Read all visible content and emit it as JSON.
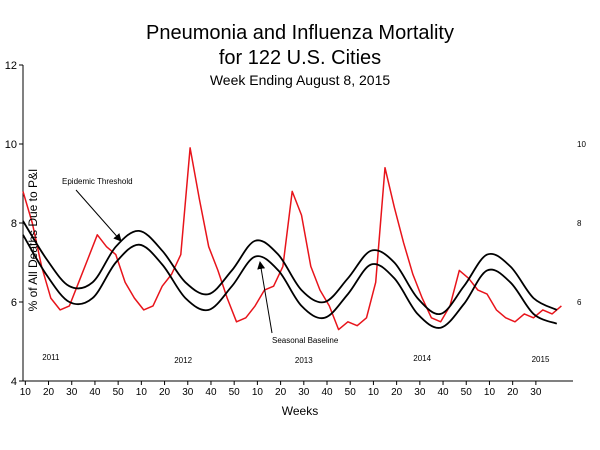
{
  "chart_data": {
    "type": "line",
    "title": "Pneumonia and Influenza Mortality",
    "title_line2": "for 122 U.S. Cities",
    "subtitle": "Week Ending  August 8, 2015",
    "xlabel": "Weeks",
    "ylabel": "% of All Deaths Due to P&I",
    "ylim": [
      4,
      12
    ],
    "yticks": [
      "4",
      "6",
      "8",
      "10",
      "12"
    ],
    "xtick_labels": [
      "10",
      "20",
      "30",
      "40",
      "50",
      "10",
      "20",
      "30",
      "40",
      "50",
      "10",
      "20",
      "30",
      "40",
      "50",
      "10",
      "20",
      "30",
      "40",
      "50",
      "10",
      "20",
      "30"
    ],
    "year_labels": [
      "2011",
      "2012",
      "2013",
      "2014",
      "2015"
    ],
    "annotations": {
      "epidemic_threshold": "Epidemic Threshold",
      "seasonal_baseline": "Seasonal Baseline"
    },
    "colors": {
      "observed": "#e8141b",
      "threshold": "#000000",
      "baseline": "#000000"
    },
    "series": [
      {
        "key": "observed",
        "x": [
          0,
          4,
          8,
          12,
          16,
          20,
          24,
          28,
          32,
          36,
          40,
          44,
          48,
          52,
          56,
          60,
          64,
          68,
          72,
          76,
          80,
          84,
          88,
          92,
          96,
          100,
          104,
          108,
          112,
          116,
          120,
          124,
          128,
          132,
          136,
          140,
          144,
          148,
          152,
          156,
          160,
          164,
          168,
          172,
          176,
          180,
          184,
          188,
          192,
          196,
          200,
          204,
          208,
          212,
          216,
          220,
          224,
          228,
          232
        ],
        "y": [
          8.8,
          8.0,
          6.9,
          6.1,
          5.8,
          5.9,
          6.5,
          7.1,
          7.7,
          7.4,
          7.2,
          6.5,
          6.1,
          5.8,
          5.9,
          6.4,
          6.7,
          7.2,
          9.9,
          8.6,
          7.4,
          6.8,
          6.1,
          5.5,
          5.6,
          5.9,
          6.3,
          6.4,
          6.9,
          8.8,
          8.2,
          6.9,
          6.3,
          5.9,
          5.3,
          5.5,
          5.4,
          5.6,
          6.5,
          9.4,
          8.4,
          7.5,
          6.7,
          6.1,
          5.6,
          5.5,
          5.9,
          6.8,
          6.6,
          6.3,
          6.2,
          5.8,
          5.6,
          5.5,
          5.7,
          5.6,
          5.8,
          5.7,
          5.9
        ]
      },
      {
        "key": "threshold",
        "name": "Epidemic Threshold",
        "x": [
          0,
          10,
          20,
          30,
          40,
          50,
          60,
          70,
          80,
          90,
          100,
          110,
          120,
          130,
          140,
          150,
          160,
          170,
          180,
          190,
          200,
          210,
          220,
          230
        ],
        "y": [
          8.05,
          7.1,
          6.4,
          6.5,
          7.4,
          7.8,
          7.3,
          6.5,
          6.2,
          6.8,
          7.55,
          7.2,
          6.3,
          6.0,
          6.6,
          7.3,
          7.0,
          6.1,
          5.7,
          6.4,
          7.2,
          6.9,
          6.1,
          5.8
        ]
      },
      {
        "key": "baseline",
        "name": "Seasonal Baseline",
        "x": [
          0,
          10,
          20,
          30,
          40,
          50,
          60,
          70,
          80,
          90,
          100,
          110,
          120,
          130,
          140,
          150,
          160,
          170,
          180,
          190,
          200,
          210,
          220,
          230
        ],
        "y": [
          7.7,
          6.7,
          6.0,
          6.1,
          7.0,
          7.45,
          6.95,
          6.1,
          5.8,
          6.4,
          7.15,
          6.8,
          5.9,
          5.6,
          6.2,
          6.95,
          6.6,
          5.7,
          5.35,
          5.95,
          6.8,
          6.5,
          5.7,
          5.45
        ]
      }
    ]
  }
}
